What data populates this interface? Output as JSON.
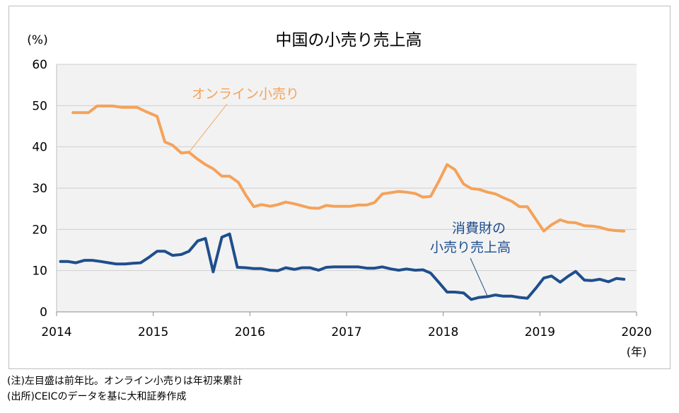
{
  "chart_data": {
    "type": "line",
    "title": "中国の小売り売上高",
    "ylabel": "(%)",
    "xlabel": "(年)",
    "ylim": [
      0,
      60
    ],
    "yticks": [
      "0",
      "10",
      "20",
      "30",
      "40",
      "50",
      "60"
    ],
    "xlim": [
      2014,
      2020
    ],
    "xticks": [
      "2014",
      "2015",
      "2016",
      "2017",
      "2018",
      "2019",
      "2020"
    ],
    "grid": true,
    "series": [
      {
        "name": "オンライン小売り",
        "color": "#f4a25a",
        "points": [
          [
            2014.17,
            48.3
          ],
          [
            2014.25,
            48.3
          ],
          [
            2014.33,
            48.3
          ],
          [
            2014.42,
            49.9
          ],
          [
            2014.5,
            49.9
          ],
          [
            2014.58,
            49.9
          ],
          [
            2014.67,
            49.6
          ],
          [
            2014.75,
            49.6
          ],
          [
            2014.83,
            49.6
          ],
          [
            2014.92,
            48.6
          ],
          [
            2015.04,
            47.4
          ],
          [
            2015.12,
            41.2
          ],
          [
            2015.2,
            40.4
          ],
          [
            2015.29,
            38.5
          ],
          [
            2015.37,
            38.7
          ],
          [
            2015.46,
            37.0
          ],
          [
            2015.54,
            35.7
          ],
          [
            2015.62,
            34.7
          ],
          [
            2015.71,
            32.9
          ],
          [
            2015.79,
            32.9
          ],
          [
            2015.88,
            31.4
          ],
          [
            2015.96,
            28.2
          ],
          [
            2016.04,
            25.5
          ],
          [
            2016.12,
            26.0
          ],
          [
            2016.21,
            25.6
          ],
          [
            2016.29,
            26.0
          ],
          [
            2016.37,
            26.6
          ],
          [
            2016.46,
            26.2
          ],
          [
            2016.54,
            25.7
          ],
          [
            2016.62,
            25.2
          ],
          [
            2016.71,
            25.1
          ],
          [
            2016.79,
            25.8
          ],
          [
            2016.87,
            25.6
          ],
          [
            2016.96,
            25.6
          ],
          [
            2017.04,
            25.6
          ],
          [
            2017.12,
            25.9
          ],
          [
            2017.21,
            25.9
          ],
          [
            2017.29,
            26.5
          ],
          [
            2017.37,
            28.6
          ],
          [
            2017.46,
            28.9
          ],
          [
            2017.54,
            29.2
          ],
          [
            2017.62,
            29.0
          ],
          [
            2017.71,
            28.7
          ],
          [
            2017.79,
            27.8
          ],
          [
            2017.87,
            28.0
          ],
          [
            2017.96,
            31.9
          ],
          [
            2018.04,
            35.7
          ],
          [
            2018.12,
            34.5
          ],
          [
            2018.21,
            31.0
          ],
          [
            2018.29,
            29.9
          ],
          [
            2018.37,
            29.7
          ],
          [
            2018.46,
            29.0
          ],
          [
            2018.54,
            28.6
          ],
          [
            2018.62,
            27.7
          ],
          [
            2018.71,
            26.8
          ],
          [
            2018.79,
            25.5
          ],
          [
            2018.87,
            25.5
          ],
          [
            2019.04,
            19.6
          ],
          [
            2019.12,
            21.1
          ],
          [
            2019.21,
            22.3
          ],
          [
            2019.29,
            21.7
          ],
          [
            2019.37,
            21.6
          ],
          [
            2019.46,
            20.9
          ],
          [
            2019.54,
            20.8
          ],
          [
            2019.62,
            20.5
          ],
          [
            2019.71,
            19.9
          ],
          [
            2019.79,
            19.7
          ],
          [
            2019.87,
            19.6
          ]
        ]
      },
      {
        "name": "消費財の小売り売上高",
        "color": "#1f4e8c",
        "points": [
          [
            2014.04,
            12.2
          ],
          [
            2014.12,
            12.2
          ],
          [
            2014.2,
            11.9
          ],
          [
            2014.29,
            12.5
          ],
          [
            2014.37,
            12.5
          ],
          [
            2014.46,
            12.2
          ],
          [
            2014.54,
            11.9
          ],
          [
            2014.62,
            11.6
          ],
          [
            2014.71,
            11.6
          ],
          [
            2014.79,
            11.8
          ],
          [
            2014.87,
            11.9
          ],
          [
            2014.96,
            13.3
          ],
          [
            2015.04,
            14.7
          ],
          [
            2015.12,
            14.7
          ],
          [
            2015.2,
            13.7
          ],
          [
            2015.29,
            13.9
          ],
          [
            2015.37,
            14.7
          ],
          [
            2015.46,
            17.2
          ],
          [
            2015.54,
            17.8
          ],
          [
            2015.62,
            9.7
          ],
          [
            2015.71,
            18.1
          ],
          [
            2015.79,
            18.9
          ],
          [
            2015.87,
            10.8
          ],
          [
            2015.96,
            10.7
          ],
          [
            2016.04,
            10.5
          ],
          [
            2016.12,
            10.5
          ],
          [
            2016.21,
            10.1
          ],
          [
            2016.29,
            10.0
          ],
          [
            2016.37,
            10.7
          ],
          [
            2016.46,
            10.3
          ],
          [
            2016.54,
            10.7
          ],
          [
            2016.62,
            10.7
          ],
          [
            2016.71,
            10.1
          ],
          [
            2016.79,
            10.8
          ],
          [
            2016.87,
            10.9
          ],
          [
            2016.96,
            10.9
          ],
          [
            2017.04,
            10.9
          ],
          [
            2017.12,
            10.9
          ],
          [
            2017.21,
            10.6
          ],
          [
            2017.29,
            10.6
          ],
          [
            2017.37,
            10.9
          ],
          [
            2017.46,
            10.4
          ],
          [
            2017.54,
            10.1
          ],
          [
            2017.62,
            10.4
          ],
          [
            2017.71,
            10.1
          ],
          [
            2017.79,
            10.2
          ],
          [
            2017.87,
            9.4
          ],
          [
            2017.96,
            7.0
          ],
          [
            2018.04,
            4.8
          ],
          [
            2018.12,
            4.8
          ],
          [
            2018.21,
            4.6
          ],
          [
            2018.29,
            3.0
          ],
          [
            2018.37,
            3.5
          ],
          [
            2018.46,
            3.7
          ],
          [
            2018.54,
            4.1
          ],
          [
            2018.62,
            3.8
          ],
          [
            2018.71,
            3.8
          ],
          [
            2018.79,
            3.5
          ],
          [
            2018.87,
            3.3
          ],
          [
            2018.96,
            5.8
          ],
          [
            2019.04,
            8.2
          ],
          [
            2019.12,
            8.7
          ],
          [
            2019.21,
            7.2
          ],
          [
            2019.29,
            8.6
          ],
          [
            2019.37,
            9.8
          ],
          [
            2019.46,
            7.7
          ],
          [
            2019.54,
            7.6
          ],
          [
            2019.62,
            7.9
          ],
          [
            2019.71,
            7.3
          ],
          [
            2019.79,
            8.1
          ],
          [
            2019.87,
            7.9
          ]
        ]
      }
    ],
    "annotations": [
      {
        "text": "オンライン小売り",
        "color": "#f4a25a"
      },
      {
        "lines": [
          "消費財の",
          "小売り売上高"
        ],
        "color": "#1f4e8c"
      }
    ]
  },
  "notes": [
    "(注)左目盛は前年比。オンライン小売りは年初来累計",
    "(出所)CEICのデータを基に大和証券作成"
  ]
}
